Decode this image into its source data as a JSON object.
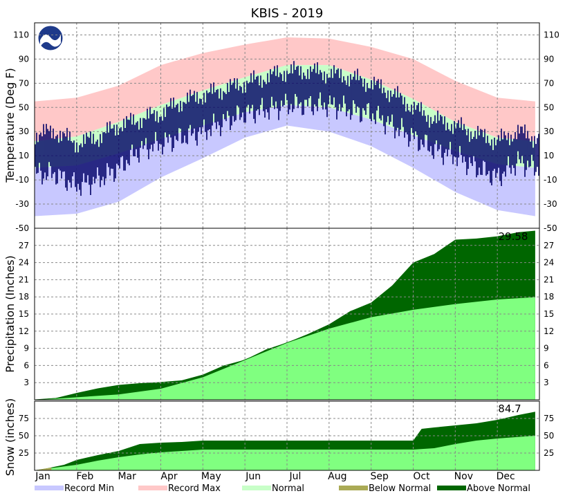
{
  "colors": {
    "record_min": "#c8c8ff",
    "record_max": "#ffc8c8",
    "normal": "#c8ffc8",
    "observed": "#000066",
    "normal_precip": "#80ff80",
    "above_normal": "#006600",
    "below_normal": "#aaaa55",
    "grid": "#888888"
  },
  "chart_data": [
    {
      "type": "area",
      "title": "KBIS - 2019",
      "ylabel": "Temperature (Deg F)",
      "ylim": [
        -50,
        120
      ],
      "yticks": [
        -50,
        -30,
        -10,
        10,
        30,
        50,
        70,
        90,
        110
      ],
      "months": [
        "Jan",
        "Feb",
        "Mar",
        "Apr",
        "May",
        "Jun",
        "Jul",
        "Aug",
        "Sep",
        "Oct",
        "Nov",
        "Dec"
      ],
      "grid": true,
      "series": [
        {
          "name": "Record Min",
          "x_month": [
            1,
            2,
            3,
            4,
            5,
            6,
            7,
            8,
            9,
            10,
            11,
            12,
            12.9
          ],
          "values": [
            -40,
            -38,
            -28,
            -8,
            8,
            25,
            35,
            30,
            18,
            0,
            -20,
            -35,
            -40
          ]
        },
        {
          "name": "Record Max",
          "x_month": [
            1,
            2,
            3,
            4,
            5,
            6,
            7,
            8,
            9,
            10,
            11,
            12,
            12.9
          ],
          "values": [
            55,
            58,
            68,
            85,
            95,
            102,
            108,
            107,
            100,
            90,
            72,
            58,
            55
          ]
        },
        {
          "name": "Normal",
          "x_month": [
            1,
            2,
            3,
            4,
            5,
            6,
            7,
            8,
            9,
            10,
            11,
            12,
            12.9
          ],
          "low": [
            0,
            2,
            12,
            24,
            35,
            46,
            52,
            50,
            40,
            27,
            14,
            3,
            0
          ],
          "high": [
            22,
            26,
            38,
            52,
            64,
            75,
            85,
            85,
            73,
            57,
            38,
            25,
            22
          ]
        },
        {
          "name": "Observed",
          "x_month": [
            1,
            1.5,
            2,
            2.5,
            3,
            3.5,
            4,
            4.5,
            5,
            5.5,
            6,
            6.5,
            7,
            7.5,
            8,
            8.5,
            9,
            9.5,
            10,
            10.5,
            11,
            11.5,
            12,
            12.5,
            12.9
          ],
          "low": [
            -5,
            -5,
            -15,
            -10,
            0,
            15,
            20,
            25,
            30,
            38,
            45,
            48,
            52,
            52,
            52,
            48,
            45,
            35,
            25,
            15,
            10,
            0,
            -8,
            5,
            0
          ],
          "high": [
            28,
            30,
            20,
            25,
            35,
            40,
            45,
            55,
            60,
            65,
            70,
            75,
            80,
            80,
            78,
            75,
            70,
            62,
            50,
            40,
            35,
            28,
            22,
            30,
            25
          ]
        }
      ]
    },
    {
      "type": "area",
      "ylabel": "Precipitation (Inches)",
      "ylim": [
        0,
        30
      ],
      "yticks": [
        3,
        6,
        9,
        12,
        15,
        18,
        21,
        24,
        27
      ],
      "total_label": "29.58",
      "series": [
        {
          "name": "Normal",
          "x_month": [
            1,
            2,
            3,
            4,
            5,
            6,
            7,
            8,
            9,
            10,
            11,
            12,
            12.9
          ],
          "values": [
            0,
            0.5,
            1.0,
            2.0,
            4.0,
            7.0,
            10.0,
            12.5,
            14.5,
            15.8,
            16.8,
            17.6,
            18.0
          ]
        },
        {
          "name": "Observed",
          "x_month": [
            1,
            1.5,
            2,
            2.5,
            3,
            3.5,
            4,
            4.5,
            5,
            5.5,
            6,
            6.5,
            7,
            7.5,
            8,
            8.5,
            9,
            9.5,
            10,
            10.5,
            11,
            11.5,
            12,
            12.5,
            12.9
          ],
          "values": [
            0,
            0.3,
            1.2,
            2.0,
            2.6,
            2.9,
            3.1,
            3.4,
            4.4,
            6.0,
            7.0,
            8.8,
            10.0,
            11.5,
            13.2,
            15.5,
            17.0,
            20.0,
            24.0,
            25.5,
            28.0,
            28.2,
            28.6,
            29.3,
            29.58
          ]
        }
      ]
    },
    {
      "type": "area",
      "ylabel": "Snow (inches)",
      "ylim": [
        0,
        100
      ],
      "yticks": [
        25,
        50,
        75
      ],
      "total_label": "84.7",
      "series": [
        {
          "name": "Normal",
          "x_month": [
            1,
            1.5,
            2,
            2.5,
            3,
            3.5,
            4,
            4.5,
            5,
            6,
            7,
            8,
            9,
            10,
            10.5,
            11,
            11.5,
            12,
            12.9
          ],
          "values": [
            0,
            4,
            8,
            14,
            19,
            23,
            26,
            28,
            30,
            30,
            30,
            30,
            30,
            30,
            32,
            38,
            43,
            46,
            50
          ]
        },
        {
          "name": "Observed",
          "x_month": [
            1,
            1.3,
            1.7,
            2,
            2.5,
            3,
            3.5,
            4,
            4.5,
            5,
            6,
            7,
            8,
            9,
            10,
            10.2,
            10.5,
            11,
            11.5,
            12,
            12.5,
            12.9
          ],
          "values": [
            0,
            3,
            8,
            15,
            22,
            28,
            38,
            40,
            41,
            43,
            43,
            43,
            43,
            43,
            43,
            60,
            62,
            65,
            68,
            73,
            80,
            84.7
          ]
        }
      ]
    }
  ],
  "legend": [
    {
      "label": "Record Min",
      "color": "#c8c8ff"
    },
    {
      "label": "Record Max",
      "color": "#ffc8c8"
    },
    {
      "label": "Normal",
      "color": "#c8ffc8"
    },
    {
      "label": "Below Normal",
      "color": "#aaaa55"
    },
    {
      "label": "Above Normal",
      "color": "#006600"
    }
  ]
}
